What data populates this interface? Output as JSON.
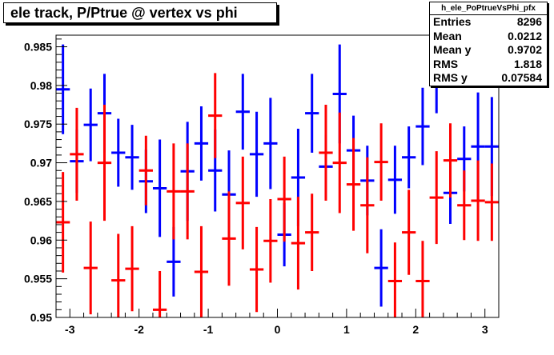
{
  "title": "ele track, P/Ptrue @ vertex vs phi",
  "stats": {
    "name": "h_ele_PoPtrueVsPhi_pfx",
    "rows": [
      {
        "label": "Entries",
        "value": "8296"
      },
      {
        "label": "Mean",
        "value": "0.0212"
      },
      {
        "label": "Mean y",
        "value": "0.9702"
      },
      {
        "label": "RMS",
        "value": "1.818"
      },
      {
        "label": "RMS y",
        "value": "0.07584"
      }
    ]
  },
  "colors": {
    "blue_series": "#0000ff",
    "red_series": "#ff0000",
    "frame": "#000000"
  },
  "chart_data": {
    "type": "scatter",
    "title": "ele track, P/Ptrue @ vertex vs phi",
    "xlabel": "",
    "ylabel": "",
    "xlim": [
      -3.2,
      3.2
    ],
    "ylim": [
      0.95,
      0.9865
    ],
    "x_ticks": [
      "-3",
      "-2",
      "-1",
      "0",
      "1",
      "2",
      "3"
    ],
    "x_tick_values": [
      -3,
      -2,
      -1,
      0,
      1,
      2,
      3
    ],
    "y_ticks": [
      "0.95",
      "0.955",
      "0.96",
      "0.965",
      "0.97",
      "0.975",
      "0.98",
      "0.985"
    ],
    "y_tick_values": [
      0.95,
      0.955,
      0.96,
      0.965,
      0.97,
      0.975,
      0.98,
      0.985
    ],
    "bin_half_width": 0.1,
    "grid": false,
    "series": [
      {
        "color": "#0000ff",
        "points": [
          {
            "x": -3.1,
            "y": 0.9795,
            "err": 0.0058
          },
          {
            "x": -2.9,
            "y": 0.9702,
            "err": 0.0041
          },
          {
            "x": -2.7,
            "y": 0.9749,
            "err": 0.0047
          },
          {
            "x": -2.5,
            "y": 0.9764,
            "err": 0.0051
          },
          {
            "x": -2.3,
            "y": 0.9713,
            "err": 0.0044
          },
          {
            "x": -2.1,
            "y": 0.9707,
            "err": 0.0042
          },
          {
            "x": -1.9,
            "y": 0.9676,
            "err": 0.0041
          },
          {
            "x": -1.7,
            "y": 0.9667,
            "err": 0.0063
          },
          {
            "x": -1.5,
            "y": 0.9572,
            "err": 0.0045
          },
          {
            "x": -1.3,
            "y": 0.9689,
            "err": 0.0064
          },
          {
            "x": -1.1,
            "y": 0.9725,
            "err": 0.0048
          },
          {
            "x": -0.9,
            "y": 0.969,
            "err": 0.0053
          },
          {
            "x": -0.7,
            "y": 0.9659,
            "err": 0.0057
          },
          {
            "x": -0.5,
            "y": 0.9766,
            "err": 0.0049
          },
          {
            "x": -0.3,
            "y": 0.9711,
            "err": 0.0055
          },
          {
            "x": -0.1,
            "y": 0.9725,
            "err": 0.0059
          },
          {
            "x": 0.1,
            "y": 0.9607,
            "err": 0.0041
          },
          {
            "x": 0.3,
            "y": 0.9681,
            "err": 0.0063
          },
          {
            "x": 0.5,
            "y": 0.9764,
            "err": 0.0051
          },
          {
            "x": 0.7,
            "y": 0.9695,
            "err": 0.0041
          },
          {
            "x": 0.9,
            "y": 0.9789,
            "err": 0.0064
          },
          {
            "x": 1.1,
            "y": 0.9716,
            "err": 0.0045
          },
          {
            "x": 1.3,
            "y": 0.9677,
            "err": 0.0045
          },
          {
            "x": 1.5,
            "y": 0.9564,
            "err": 0.005
          },
          {
            "x": 1.7,
            "y": 0.9678,
            "err": 0.0044
          },
          {
            "x": 1.9,
            "y": 0.9707,
            "err": 0.004
          },
          {
            "x": 2.1,
            "y": 0.9747,
            "err": 0.005
          },
          {
            "x": 2.3,
            "y": 0.9804,
            "err": 0.004
          },
          {
            "x": 2.5,
            "y": 0.9661,
            "err": 0.004
          },
          {
            "x": 2.7,
            "y": 0.9705,
            "err": 0.0042
          },
          {
            "x": 2.9,
            "y": 0.9721,
            "err": 0.007
          },
          {
            "x": 3.1,
            "y": 0.9721,
            "err": 0.0064
          }
        ]
      },
      {
        "color": "#ff0000",
        "points": [
          {
            "x": -3.1,
            "y": 0.9623,
            "err": 0.0065
          },
          {
            "x": -2.9,
            "y": 0.9711,
            "err": 0.006
          },
          {
            "x": -2.7,
            "y": 0.9564,
            "err": 0.006
          },
          {
            "x": -2.5,
            "y": 0.97,
            "err": 0.0075
          },
          {
            "x": -2.3,
            "y": 0.9548,
            "err": 0.006
          },
          {
            "x": -2.1,
            "y": 0.9563,
            "err": 0.0055
          },
          {
            "x": -1.9,
            "y": 0.969,
            "err": 0.0045
          },
          {
            "x": -1.7,
            "y": 0.951,
            "err": 0.005
          },
          {
            "x": -1.5,
            "y": 0.9663,
            "err": 0.0062
          },
          {
            "x": -1.3,
            "y": 0.9663,
            "err": 0.0062
          },
          {
            "x": -1.1,
            "y": 0.9559,
            "err": 0.0059
          },
          {
            "x": -0.9,
            "y": 0.9761,
            "err": 0.0055
          },
          {
            "x": -0.7,
            "y": 0.9602,
            "err": 0.0061
          },
          {
            "x": -0.5,
            "y": 0.9648,
            "err": 0.006
          },
          {
            "x": -0.3,
            "y": 0.9562,
            "err": 0.0055
          },
          {
            "x": -0.1,
            "y": 0.9599,
            "err": 0.0054
          },
          {
            "x": 0.1,
            "y": 0.9653,
            "err": 0.0055
          },
          {
            "x": 0.3,
            "y": 0.9596,
            "err": 0.006
          },
          {
            "x": 0.5,
            "y": 0.961,
            "err": 0.005
          },
          {
            "x": 0.7,
            "y": 0.9713,
            "err": 0.0062
          },
          {
            "x": 0.9,
            "y": 0.97,
            "err": 0.0065
          },
          {
            "x": 1.1,
            "y": 0.9672,
            "err": 0.006
          },
          {
            "x": 1.3,
            "y": 0.9645,
            "err": 0.0062
          },
          {
            "x": 1.5,
            "y": 0.9701,
            "err": 0.005
          },
          {
            "x": 1.7,
            "y": 0.9547,
            "err": 0.005
          },
          {
            "x": 1.9,
            "y": 0.961,
            "err": 0.0055
          },
          {
            "x": 2.1,
            "y": 0.9547,
            "err": 0.0052
          },
          {
            "x": 2.3,
            "y": 0.9655,
            "err": 0.006
          },
          {
            "x": 2.5,
            "y": 0.9703,
            "err": 0.0048
          },
          {
            "x": 2.7,
            "y": 0.9645,
            "err": 0.0045
          },
          {
            "x": 2.9,
            "y": 0.9651,
            "err": 0.0052
          },
          {
            "x": 3.1,
            "y": 0.9649,
            "err": 0.005
          }
        ]
      }
    ]
  }
}
